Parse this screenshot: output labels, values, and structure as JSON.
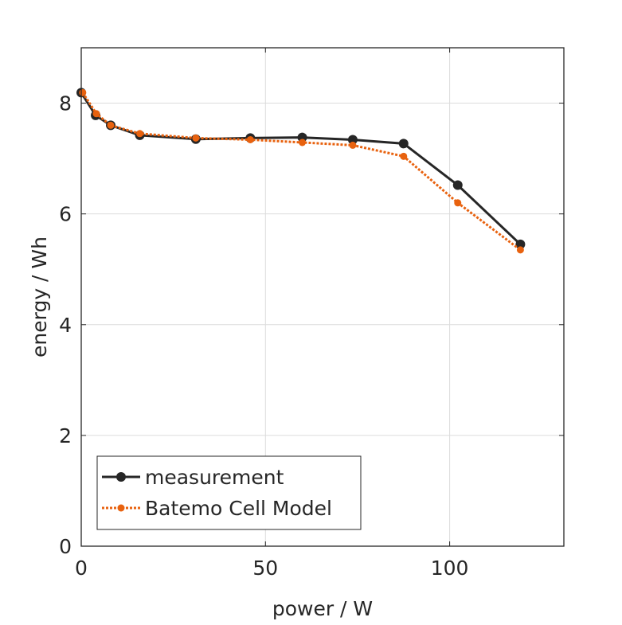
{
  "chart_data": {
    "type": "line",
    "title": "",
    "xlabel": "power / W",
    "ylabel": "energy / Wh",
    "xlim": [
      0,
      131
    ],
    "ylim": [
      0,
      9
    ],
    "xticks": [
      0,
      50,
      100
    ],
    "yticks": [
      0,
      2,
      4,
      6,
      8
    ],
    "grid": true,
    "legend_position": "bottom-left",
    "series": [
      {
        "name": "measurement",
        "color": "#262626",
        "style": "solid",
        "x": [
          0,
          3.9,
          8,
          15.9,
          31.1,
          45.9,
          60,
          73.7,
          87.5,
          102.2,
          119.2
        ],
        "y": [
          8.19,
          7.78,
          7.6,
          7.42,
          7.35,
          7.37,
          7.38,
          7.34,
          7.27,
          6.52,
          5.45
        ]
      },
      {
        "name": "Batemo Cell Model",
        "color": "#E8620F",
        "style": "dotted",
        "x": [
          0.4,
          4.1,
          8,
          15.9,
          31.1,
          45.9,
          60,
          73.7,
          87.5,
          102.2,
          119.2
        ],
        "y": [
          8.19,
          7.81,
          7.6,
          7.45,
          7.37,
          7.34,
          7.29,
          7.24,
          7.04,
          6.2,
          5.35
        ]
      }
    ]
  }
}
